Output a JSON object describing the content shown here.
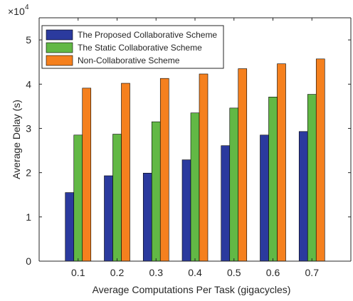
{
  "chart_data": {
    "type": "bar",
    "categories": [
      "0.1",
      "0.2",
      "0.3",
      "0.4",
      "0.5",
      "0.6",
      "0.7"
    ],
    "series": [
      {
        "name": "The Proposed Collaborative Scheme",
        "color": "#2b3a9e",
        "values": [
          1.55,
          1.93,
          1.99,
          2.29,
          2.61,
          2.85,
          2.93
        ]
      },
      {
        "name": "The Static Collaborative Scheme",
        "color": "#62b845",
        "values": [
          2.85,
          2.87,
          3.15,
          3.35,
          3.46,
          3.71,
          3.77
        ]
      },
      {
        "name": "Non-Collaborative Scheme",
        "color": "#f5801e",
        "values": [
          3.91,
          4.02,
          4.13,
          4.23,
          4.35,
          4.46,
          4.57
        ]
      }
    ],
    "xlabel": "Average Computations Per Task (gigacycles)",
    "ylabel": "Average Delay (s)",
    "yticks": [
      "0",
      "1",
      "2",
      "3",
      "4",
      "5"
    ],
    "ylim": [
      0,
      5.5
    ],
    "multiplier_base": "×10",
    "multiplier_exp": "4",
    "legend_position": "top-left",
    "grid": false
  }
}
